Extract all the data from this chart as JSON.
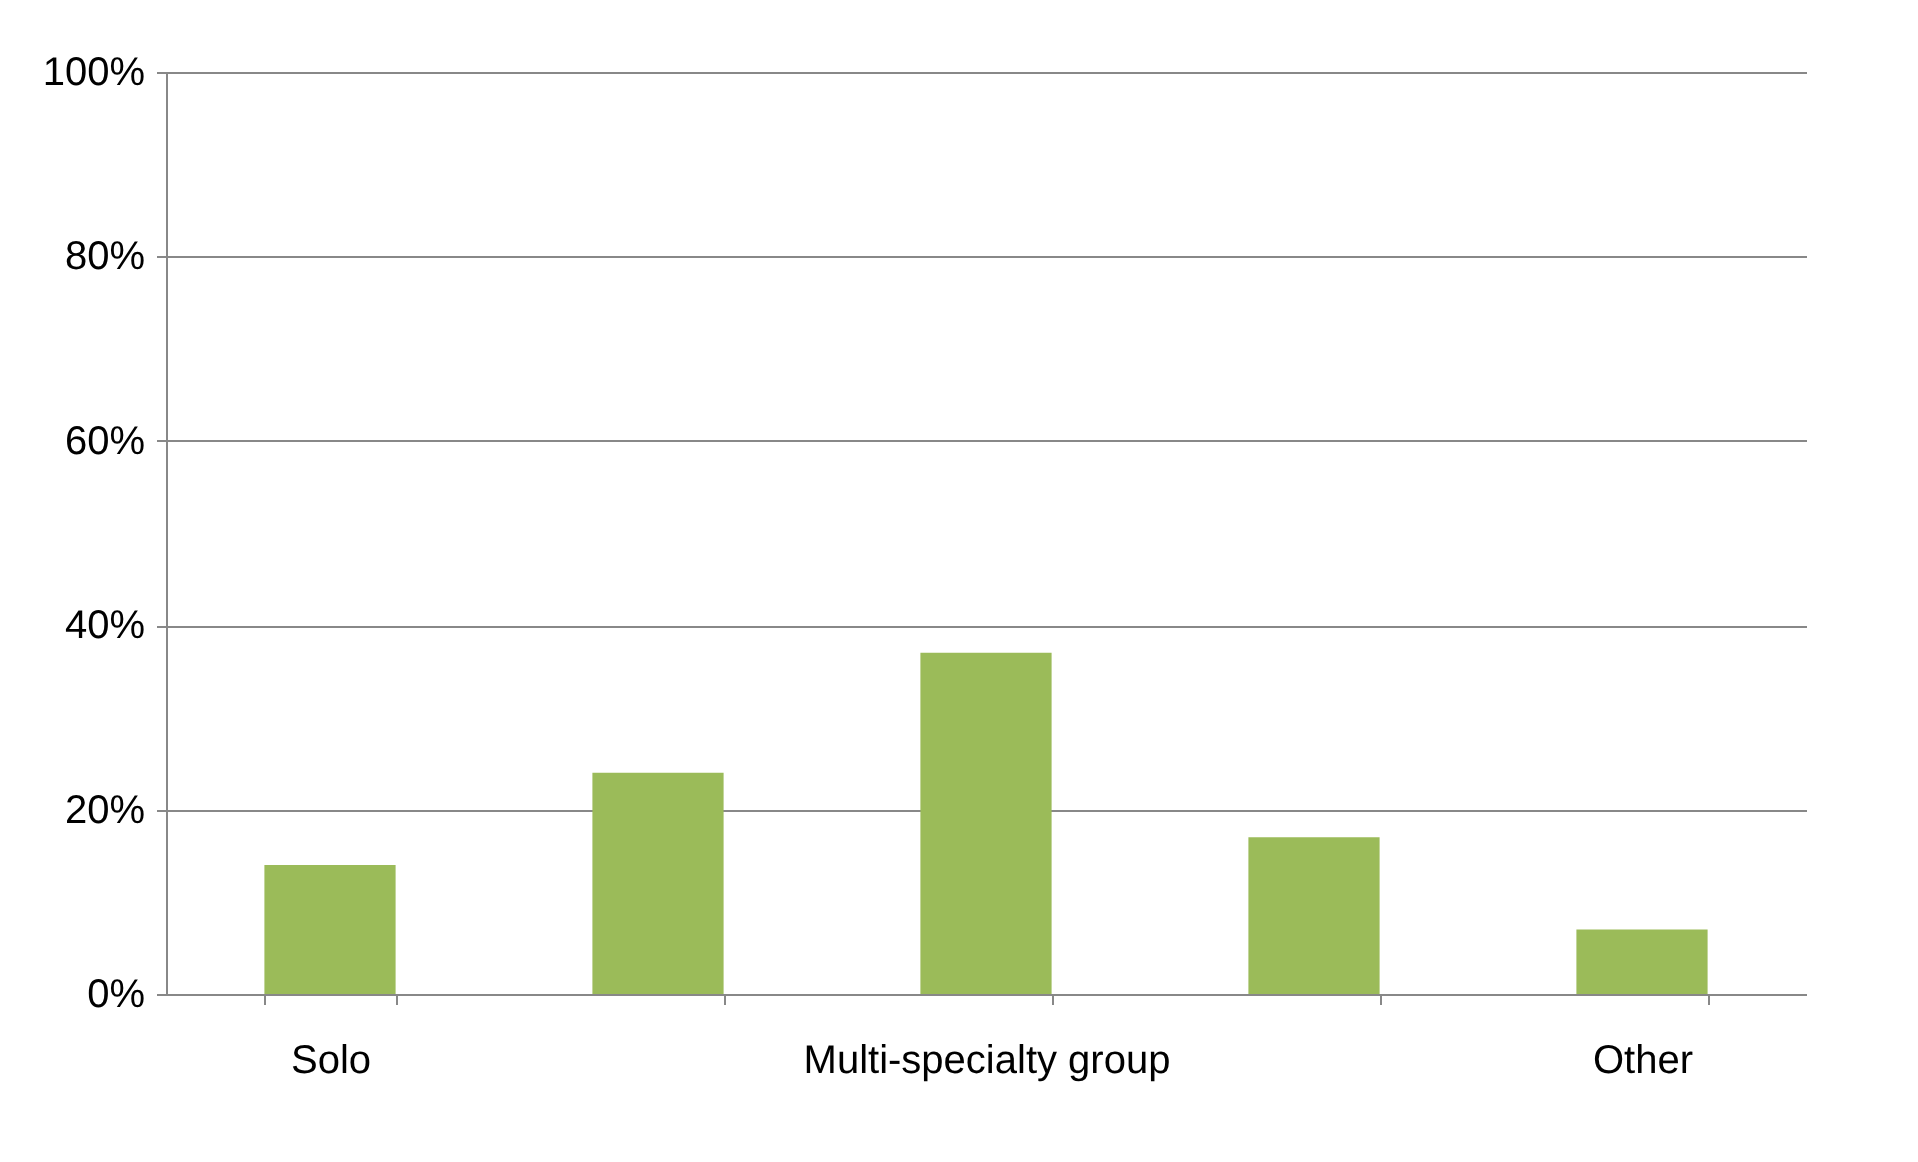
{
  "chart_data": {
    "type": "bar",
    "categories": [
      "Solo",
      null,
      "Multi-specialty group",
      null,
      "Other"
    ],
    "values": [
      14,
      24,
      37,
      17,
      7
    ],
    "color": "#9bbb59",
    "ylim": [
      0,
      100
    ],
    "yticks": [
      {
        "value": 0,
        "label": "0%"
      },
      {
        "value": 20,
        "label": "20%"
      },
      {
        "value": 40,
        "label": "40%"
      },
      {
        "value": 60,
        "label": "60%"
      },
      {
        "value": 80,
        "label": "80%"
      },
      {
        "value": 100,
        "label": "100%"
      }
    ],
    "grid": "y"
  }
}
